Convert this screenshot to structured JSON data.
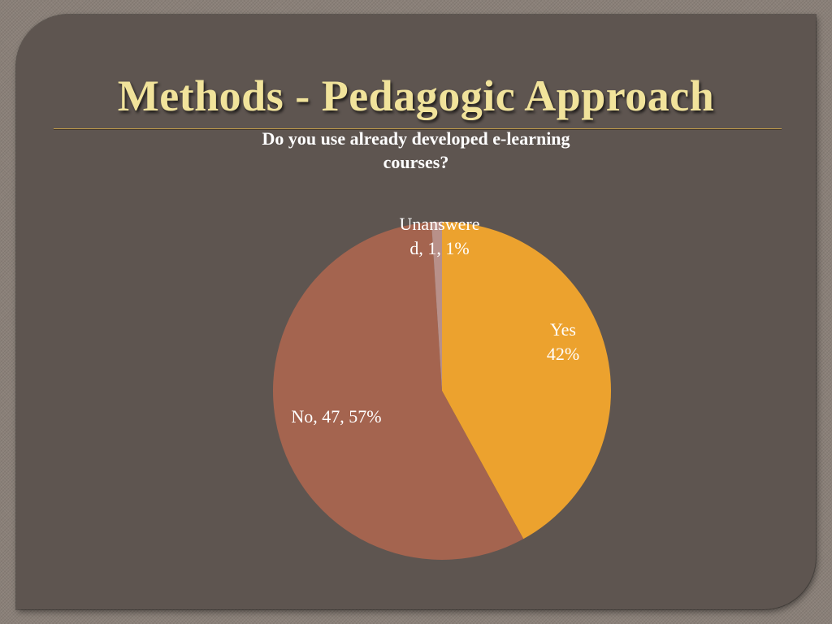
{
  "slide": {
    "title": "Methods - Pedagogic Approach"
  },
  "chart_data": {
    "type": "pie",
    "title_lines": [
      "Do you use already developed e-learning",
      "courses?"
    ],
    "colors": {
      "panel": "#5e5550",
      "title": "#f1e39b"
    },
    "slices": [
      {
        "category": "Yes",
        "percent": 42,
        "color": "#eca22e",
        "label_lines": [
          "Yes",
          "42%"
        ]
      },
      {
        "category": "No",
        "value": 47,
        "percent": 57,
        "color": "#a4644f",
        "label_lines": [
          "No, 47, 57%"
        ]
      },
      {
        "category": "Unanswered",
        "value": 1,
        "percent": 1,
        "color": "#b89089",
        "label_lines": [
          "Unanswere",
          "d, 1, 1%"
        ]
      }
    ]
  }
}
